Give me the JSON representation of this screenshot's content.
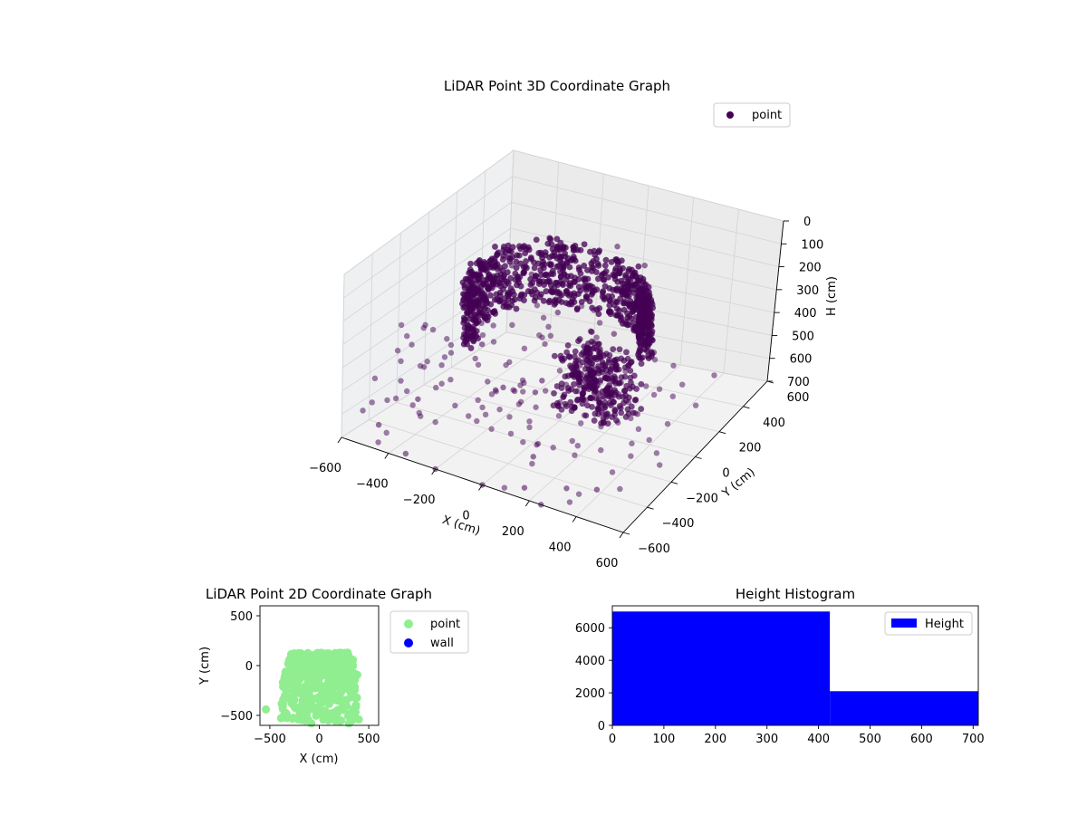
{
  "chart_data": [
    {
      "type": "scatter",
      "projection": "3d",
      "title": "LiDAR Point 3D Coordinate Graph",
      "xlabel": "X (cm)",
      "ylabel": "Y (cm)",
      "zlabel": "H (cm)",
      "xlim": [
        -600,
        600
      ],
      "ylim": [
        -600,
        600
      ],
      "zlim": [
        0,
        700
      ],
      "z_inverted": true,
      "xticks": [
        "−600",
        "−400",
        "−200",
        "0",
        "200",
        "400",
        "600"
      ],
      "yticks": [
        "−600",
        "−400",
        "−200",
        "0",
        "200",
        "400",
        "600"
      ],
      "zticks": [
        "0",
        "100",
        "200",
        "300",
        "400",
        "500",
        "600",
        "700"
      ],
      "grid": true,
      "legend": {
        "placement": "top-right",
        "entries": [
          "point"
        ]
      },
      "series": [
        {
          "name": "point",
          "color": "#440154",
          "approximate_points": [
            [
              -260,
              60,
              120
            ],
            [
              -120,
              180,
              40
            ],
            [
              60,
              280,
              10
            ],
            [
              200,
              240,
              20
            ],
            [
              300,
              80,
              60
            ],
            [
              280,
              -120,
              140
            ],
            [
              240,
              -300,
              220
            ],
            [
              120,
              -420,
              330
            ],
            [
              -40,
              -380,
              380
            ],
            [
              -200,
              -260,
              300
            ],
            [
              -300,
              -80,
              250
            ],
            [
              -200,
              100,
              150
            ],
            [
              160,
              -200,
              300
            ],
            [
              20,
              -200,
              400
            ],
            [
              -100,
              120,
              280
            ],
            [
              -450,
              -300,
              600
            ],
            [
              -500,
              -500,
              650
            ],
            [
              -350,
              -560,
              700
            ],
            [
              -200,
              -600,
              700
            ],
            [
              0,
              -600,
              700
            ],
            [
              150,
              -550,
              680
            ],
            [
              300,
              -500,
              650
            ],
            [
              400,
              -450,
              640
            ],
            [
              250,
              -600,
              700
            ],
            [
              100,
              -400,
              620
            ]
          ]
        }
      ]
    },
    {
      "type": "scatter",
      "title": "LiDAR Point 2D Coordinate Graph",
      "xlabel": "X (cm)",
      "ylabel": "Y (cm)",
      "xlim": [
        -600,
        600
      ],
      "ylim": [
        -600,
        600
      ],
      "xticks": [
        "−500",
        "0",
        "500"
      ],
      "yticks": [
        "−500",
        "0",
        "500"
      ],
      "legend": {
        "placement": "outside-right",
        "entries": [
          "point",
          "wall"
        ]
      },
      "series": [
        {
          "name": "point",
          "color": "#90ee90",
          "regions": [
            {
              "x": [
                -390,
                400
              ],
              "y": [
                -560,
                -230
              ]
            },
            {
              "x": [
                -370,
                390
              ],
              "y": [
                -240,
                -60
              ]
            },
            {
              "x": [
                -320,
                340
              ],
              "y": [
                -80,
                60
              ]
            },
            {
              "x": [
                -310,
                300
              ],
              "y": [
                40,
                130
              ]
            }
          ],
          "isolated_points": [
            [
              -540,
              -440
            ],
            [
              -80,
              -580
            ],
            [
              300,
              -580
            ]
          ]
        },
        {
          "name": "wall",
          "color": "#0000ff",
          "points": []
        }
      ]
    },
    {
      "type": "bar",
      "subtype": "histogram",
      "title": "Height Histogram",
      "xlabel": "",
      "ylabel": "",
      "xlim": [
        0,
        710
      ],
      "ylim": [
        0,
        7350
      ],
      "xticks": [
        "0",
        "100",
        "200",
        "300",
        "400",
        "500",
        "600",
        "700"
      ],
      "yticks": [
        "0",
        "2000",
        "4000",
        "6000"
      ],
      "legend": {
        "placement": "top-right",
        "entries": [
          "Height"
        ]
      },
      "series": [
        {
          "name": "Height",
          "color": "#0000ff",
          "bins": [
            {
              "x0": 0,
              "x1": 422,
              "value": 7000
            },
            {
              "x0": 422,
              "x1": 710,
              "value": 2100
            }
          ]
        }
      ]
    }
  ]
}
